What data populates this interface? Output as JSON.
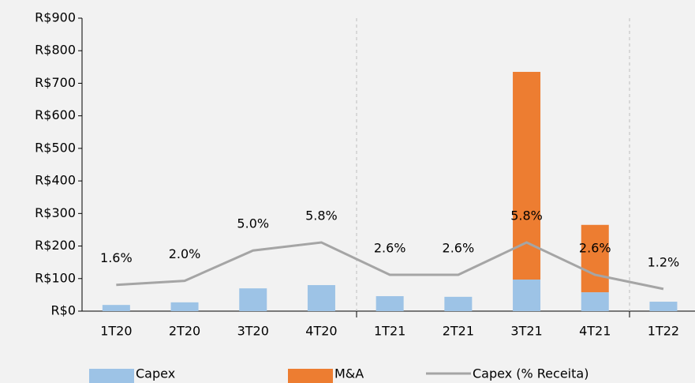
{
  "chart_data": {
    "type": "bar",
    "categories": [
      "1T20",
      "2T20",
      "3T20",
      "4T20",
      "1T21",
      "2T21",
      "3T21",
      "4T21",
      "1T22"
    ],
    "series": [
      {
        "name": "Capex",
        "color": "#9dc3e6",
        "values": [
          19,
          27,
          70,
          80,
          46,
          44,
          97,
          58,
          29
        ]
      },
      {
        "name": "M&A",
        "color": "#ed7d31",
        "values": [
          null,
          null,
          null,
          null,
          null,
          null,
          638,
          207,
          null
        ]
      },
      {
        "name": "Capex (% Receita)",
        "color": "#a5a5a5",
        "axis": "y2",
        "type": "line",
        "values": [
          1.6,
          2.0,
          5.0,
          5.8,
          2.6,
          2.6,
          5.8,
          2.6,
          1.2
        ],
        "value_labels": [
          "1.6%",
          "2.0%",
          "5.0%",
          "5.8%",
          "2.6%",
          "2.6%",
          "5.8%",
          "2.6%",
          "1.2%"
        ]
      }
    ],
    "ylim": [
      0,
      900
    ],
    "yticks": [
      {
        "value": 0,
        "label": "R$0"
      },
      {
        "value": 100,
        "label": "R$100"
      },
      {
        "value": 200,
        "label": "R$200"
      },
      {
        "value": 300,
        "label": "R$300"
      },
      {
        "value": 400,
        "label": "R$400"
      },
      {
        "value": 500,
        "label": "R$500"
      },
      {
        "value": 600,
        "label": "R$600"
      },
      {
        "value": 700,
        "label": "R$700"
      },
      {
        "value": 800,
        "label": "R$800"
      },
      {
        "value": 900,
        "label": "R$900"
      }
    ],
    "y2lim": [
      -1,
      28
    ],
    "legend": "bottom"
  }
}
